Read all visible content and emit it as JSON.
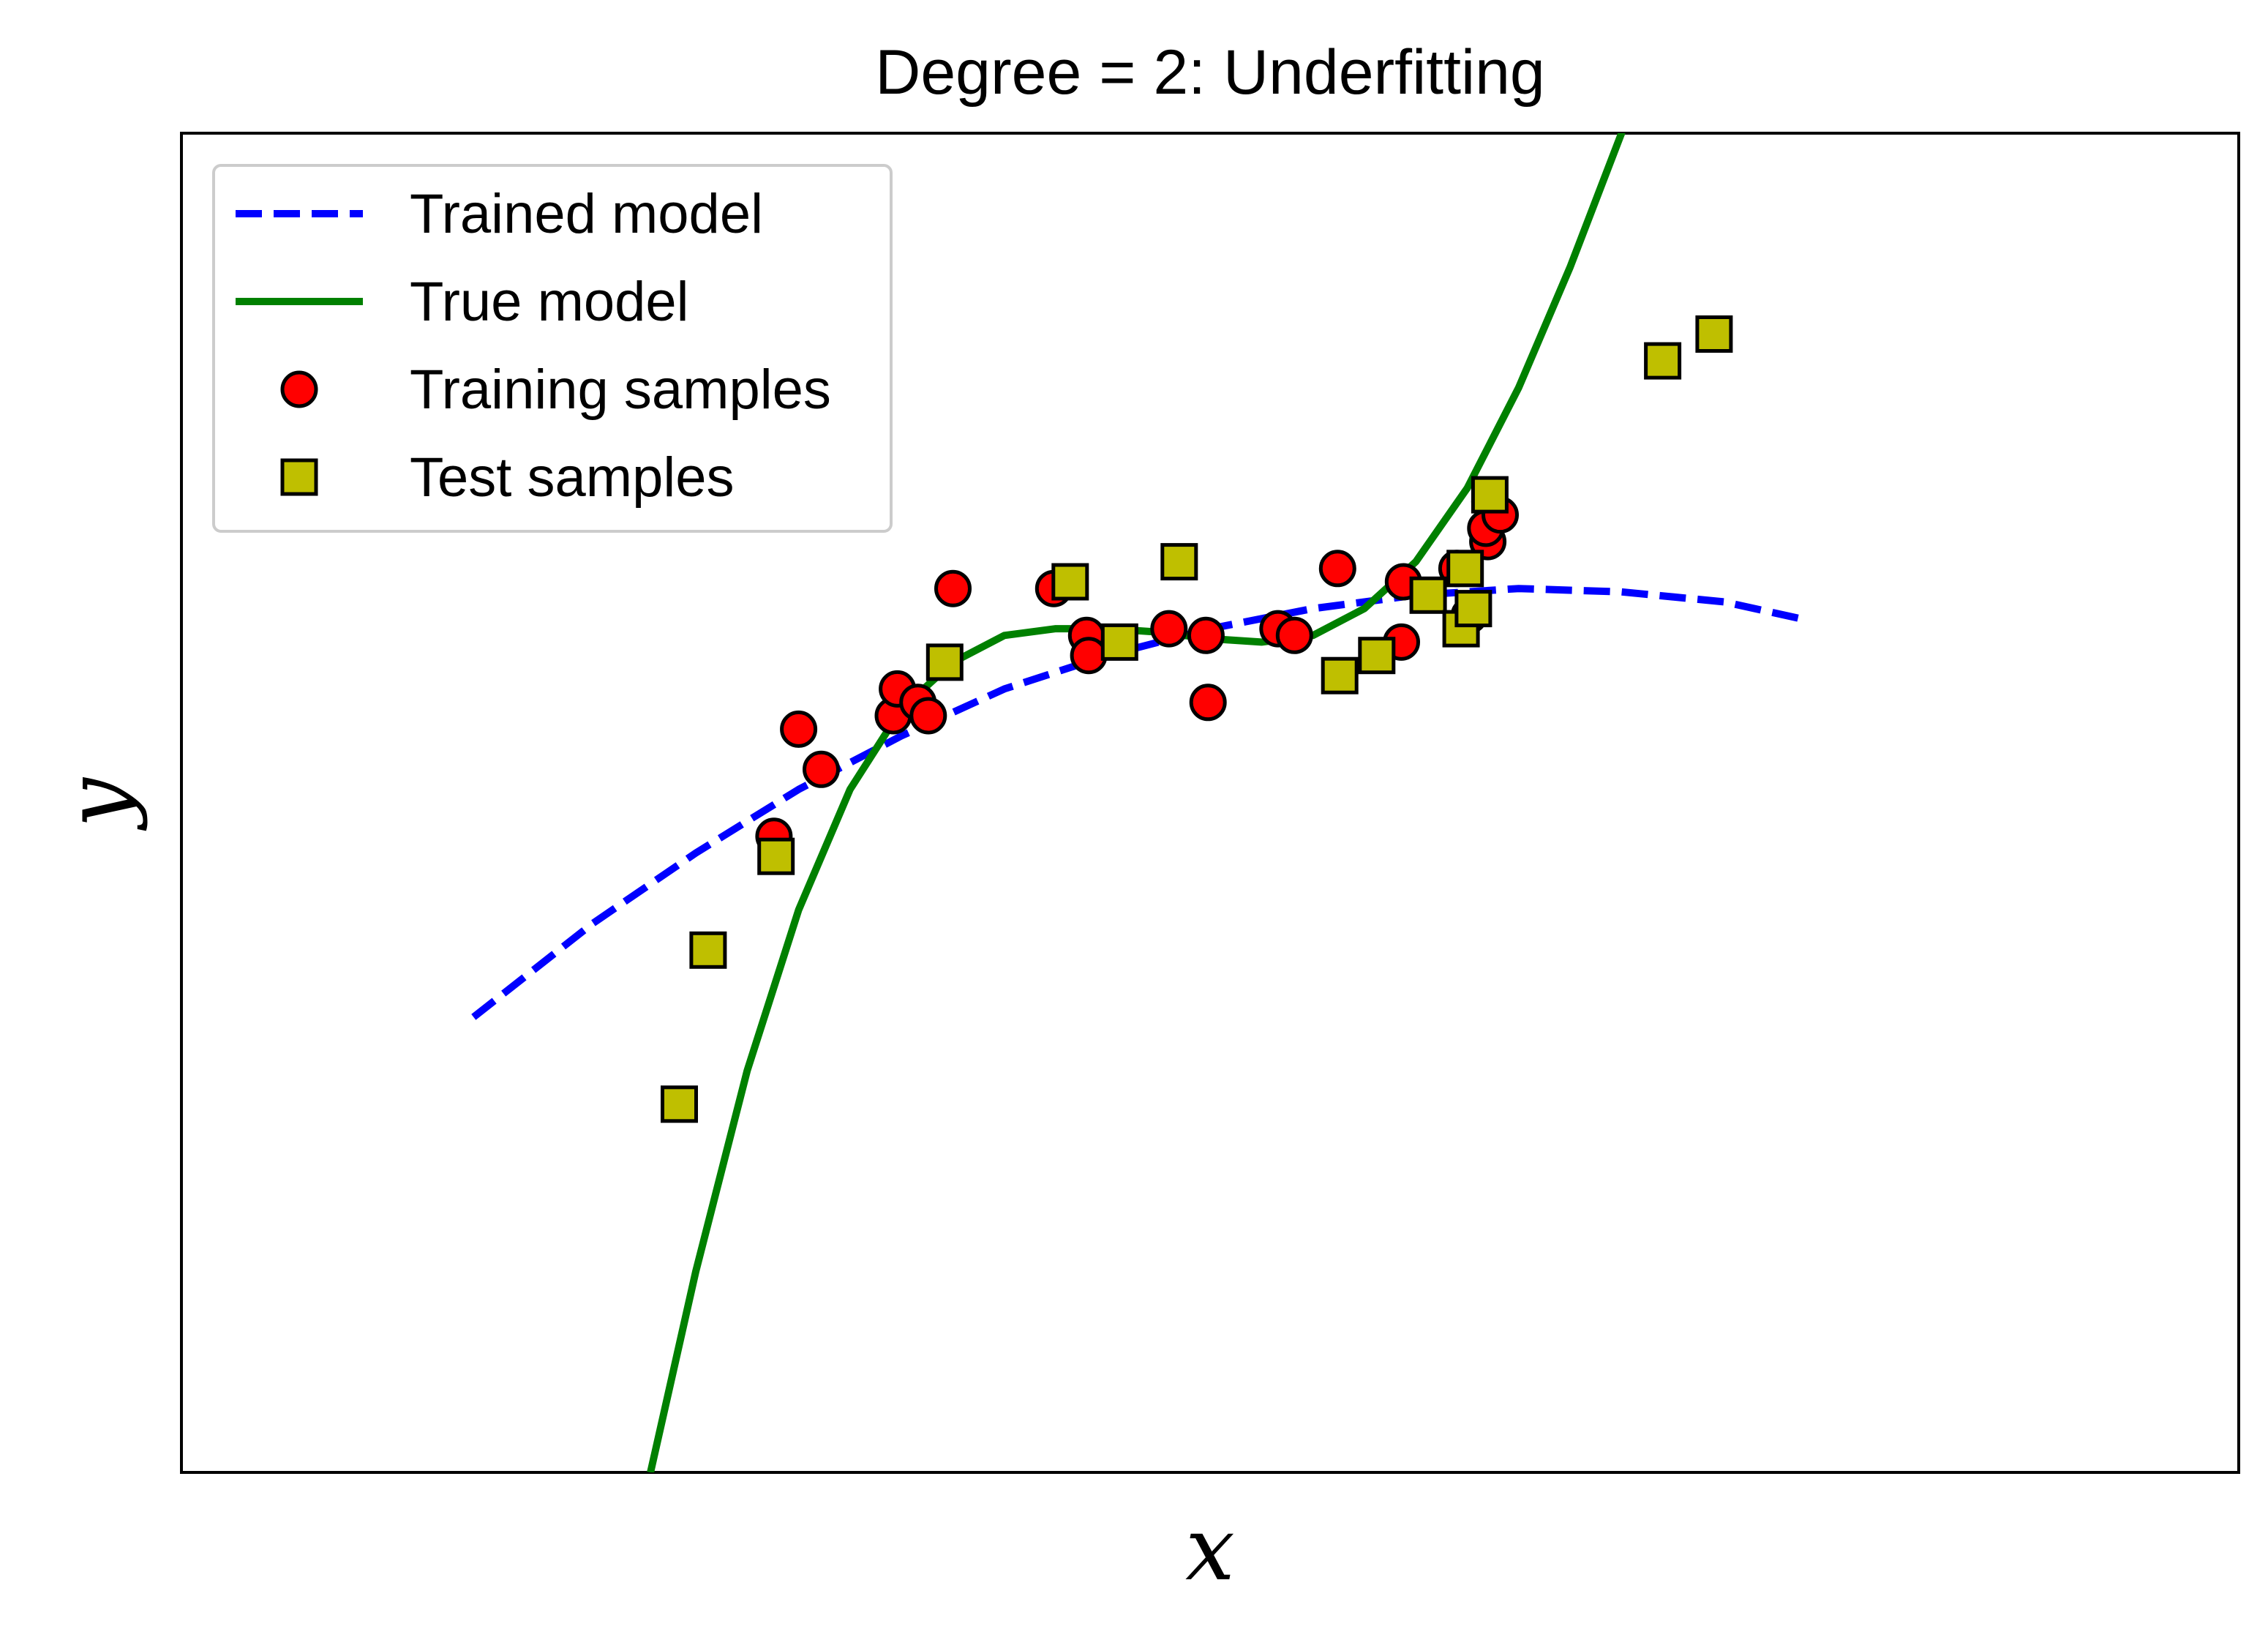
{
  "chart_data": {
    "type": "scatter",
    "title": "Degree = 2: Underfitting",
    "xlabel": "x",
    "ylabel": "y",
    "xlim": [
      0.0,
      1.0
    ],
    "ylim": [
      -1.0,
      1.0
    ],
    "grid": false,
    "show_ticks": false,
    "legend_position": "top-left",
    "series": [
      {
        "name": "Trained model",
        "kind": "line",
        "style": "dashed",
        "color": "#0000ff",
        "x": [
          0.142,
          0.2,
          0.25,
          0.3,
          0.35,
          0.4,
          0.45,
          0.5,
          0.55,
          0.6,
          0.65,
          0.7,
          0.75,
          0.787
        ],
        "y": [
          -0.32,
          -0.18,
          -0.075,
          0.02,
          0.1,
          0.17,
          0.22,
          0.26,
          0.29,
          0.31,
          0.32,
          0.315,
          0.3,
          0.275
        ]
      },
      {
        "name": "True model",
        "kind": "line",
        "style": "solid",
        "color": "#008000",
        "x": [
          0.228,
          0.25,
          0.275,
          0.3,
          0.325,
          0.35,
          0.375,
          0.4,
          0.425,
          0.45,
          0.475,
          0.5,
          0.525,
          0.55,
          0.575,
          0.6,
          0.625,
          0.65,
          0.675,
          0.7,
          0.724
        ],
        "y": [
          -1.0,
          -0.7,
          -0.4,
          -0.16,
          0.02,
          0.14,
          0.21,
          0.25,
          0.26,
          0.26,
          0.255,
          0.245,
          0.24,
          0.25,
          0.29,
          0.36,
          0.47,
          0.62,
          0.8,
          1.0,
          1.24
        ]
      },
      {
        "name": "Training samples",
        "kind": "scatter",
        "marker": "circle",
        "color": "#ff0000",
        "points": [
          [
            0.288,
            -0.05
          ],
          [
            0.3,
            0.11
          ],
          [
            0.311,
            0.05
          ],
          [
            0.346,
            0.13
          ],
          [
            0.348,
            0.17
          ],
          [
            0.358,
            0.15
          ],
          [
            0.363,
            0.13
          ],
          [
            0.375,
            0.32
          ],
          [
            0.424,
            0.32
          ],
          [
            0.44,
            0.25
          ],
          [
            0.441,
            0.22
          ],
          [
            0.48,
            0.26
          ],
          [
            0.498,
            0.25
          ],
          [
            0.499,
            0.15
          ],
          [
            0.533,
            0.26
          ],
          [
            0.541,
            0.25
          ],
          [
            0.562,
            0.35
          ],
          [
            0.593,
            0.24
          ],
          [
            0.594,
            0.33
          ],
          [
            0.62,
            0.35
          ],
          [
            0.626,
            0.28
          ],
          [
            0.635,
            0.39
          ],
          [
            0.636,
            0.45
          ],
          [
            0.634,
            0.41
          ],
          [
            0.641,
            0.43
          ]
        ]
      },
      {
        "name": "Test samples",
        "kind": "scatter",
        "marker": "square",
        "color": "#bfbf00",
        "points": [
          [
            0.242,
            -0.45
          ],
          [
            0.256,
            -0.22
          ],
          [
            0.289,
            -0.08
          ],
          [
            0.371,
            0.21
          ],
          [
            0.432,
            0.33
          ],
          [
            0.456,
            0.24
          ],
          [
            0.485,
            0.36
          ],
          [
            0.563,
            0.19
          ],
          [
            0.581,
            0.22
          ],
          [
            0.606,
            0.31
          ],
          [
            0.622,
            0.26
          ],
          [
            0.624,
            0.35
          ],
          [
            0.628,
            0.29
          ],
          [
            0.636,
            0.46
          ],
          [
            0.72,
            0.66
          ],
          [
            0.745,
            0.7
          ]
        ]
      }
    ]
  }
}
